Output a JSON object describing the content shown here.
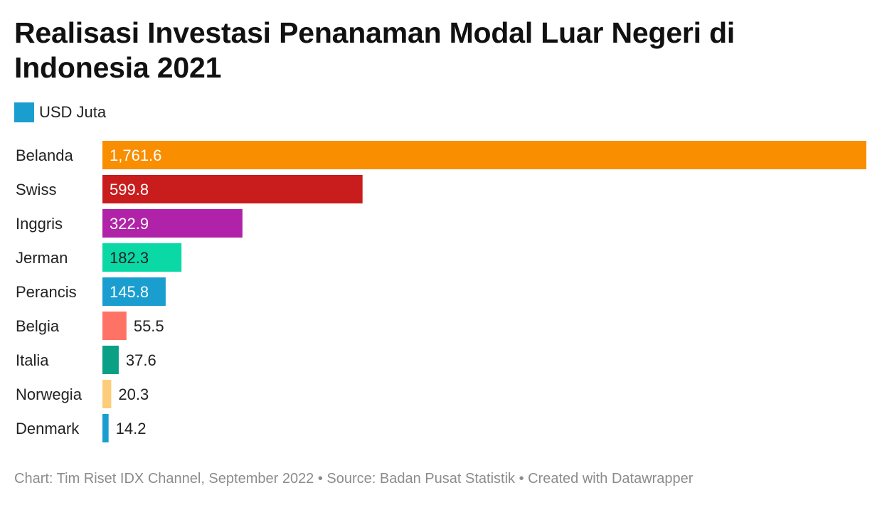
{
  "title": "Realisasi Investasi Penanaman Modal Luar Negeri di Indonesia 2021",
  "legend": {
    "label": "USD Juta",
    "color": "#1a9ecf"
  },
  "footer": "Chart: Tim Riset IDX Channel, September 2022 • Source: Badan Pusat Statistik • Created with Datawrapper",
  "chart_data": {
    "type": "bar",
    "orientation": "horizontal",
    "title": "Realisasi Investasi Penanaman Modal Luar Negeri di Indonesia 2021",
    "categories": [
      "Belanda",
      "Swiss",
      "Inggris",
      "Jerman",
      "Perancis",
      "Belgia",
      "Italia",
      "Norwegia",
      "Denmark"
    ],
    "values": [
      1761.6,
      599.8,
      322.9,
      182.3,
      145.8,
      55.5,
      37.6,
      20.3,
      14.2
    ],
    "value_labels": [
      "1,761.6",
      "599.8",
      "322.9",
      "182.3",
      "145.8",
      "55.5",
      "37.6",
      "20.3",
      "14.2"
    ],
    "colors": [
      "#f88e00",
      "#c91d1d",
      "#b023a8",
      "#0ad9a6",
      "#1a9ecf",
      "#ff7366",
      "#0aa085",
      "#fccd7a",
      "#1a9ecf"
    ],
    "label_colors": [
      "#ffffff",
      "#ffffff",
      "#ffffff",
      "#222222",
      "#ffffff",
      "#222222",
      "#222222",
      "#222222",
      "#222222"
    ],
    "series": [
      {
        "name": "USD Juta"
      }
    ],
    "xlim": [
      0,
      1761.6
    ],
    "grid": false,
    "legend_position": "top-left"
  }
}
